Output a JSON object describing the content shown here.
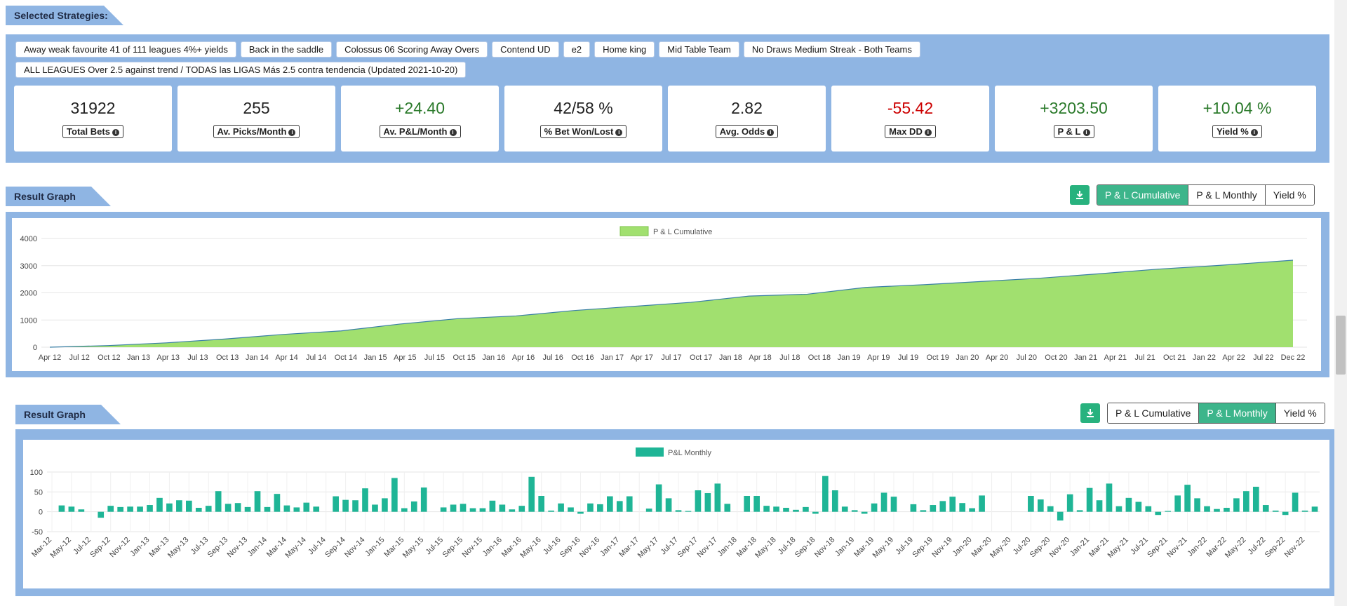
{
  "selected": {
    "title": "Selected Strategies:",
    "chips": [
      "Away weak favourite 41 of 111 leagues 4%+ yields",
      "Back in the saddle",
      "Colossus 06 Scoring Away Overs",
      "Contend UD",
      "e2",
      "Home king",
      "Mid Table Team",
      "No Draws Medium Streak - Both Teams",
      "ALL LEAGUES Over 2.5 against trend / TODAS las LIGAS Más 2.5 contra tendencia (Updated 2021-10-20)"
    ]
  },
  "stats": [
    {
      "value": "31922",
      "label": "Total Bets",
      "tone": "dark"
    },
    {
      "value": "255",
      "label": "Av. Picks/Month",
      "tone": "dark"
    },
    {
      "value": "+24.40",
      "label": "Av. P&L/Month",
      "tone": "green"
    },
    {
      "value": "42/58 %",
      "label": "% Bet Won/Lost",
      "tone": "dark"
    },
    {
      "value": "2.82",
      "label": "Avg. Odds",
      "tone": "dark"
    },
    {
      "value": "-55.42",
      "label": "Max DD",
      "tone": "red"
    },
    {
      "value": "+3203.50",
      "label": "P & L",
      "tone": "green"
    },
    {
      "value": "+10.04 %",
      "label": "Yield %",
      "tone": "green"
    }
  ],
  "graph1": {
    "title": "Result Graph",
    "buttons": [
      "P & L Cumulative",
      "P & L Monthly",
      "Yield %"
    ],
    "active": 0
  },
  "graph2": {
    "title": "Result Graph",
    "buttons": [
      "P & L Cumulative",
      "P & L Monthly",
      "Yield %"
    ],
    "active": 1
  },
  "colors": {
    "panel": "#8fb5e3",
    "accent": "#3db58b",
    "area": "#a1e06f",
    "areaLine": "#3a7fa6",
    "bar": "#1fb596"
  },
  "chart_data": [
    {
      "type": "area",
      "legend": "P & L Cumulative",
      "ylim": [
        0,
        4000
      ],
      "yticks": [
        0,
        1000,
        2000,
        3000,
        4000
      ],
      "x_ticks": [
        "Apr 12",
        "Jul 12",
        "Oct 12",
        "Jan 13",
        "Apr 13",
        "Jul 13",
        "Oct 13",
        "Jan 14",
        "Apr 14",
        "Jul 14",
        "Oct 14",
        "Jan 15",
        "Apr 15",
        "Jul 15",
        "Oct 15",
        "Jan 16",
        "Apr 16",
        "Jul 16",
        "Oct 16",
        "Jan 17",
        "Apr 17",
        "Jul 17",
        "Oct 17",
        "Jan 18",
        "Apr 18",
        "Jul 18",
        "Oct 18",
        "Jan 19",
        "Apr 19",
        "Jul 19",
        "Oct 19",
        "Jan 20",
        "Apr 20",
        "Jul 20",
        "Oct 20",
        "Jan 21",
        "Apr 21",
        "Jul 21",
        "Oct 21",
        "Jan 22",
        "Apr 22",
        "Jul 22",
        "Dec 22"
      ],
      "x": [
        "2012-04",
        "2012-10",
        "2013-04",
        "2013-10",
        "2014-04",
        "2014-10",
        "2015-04",
        "2015-10",
        "2016-04",
        "2016-10",
        "2017-04",
        "2017-10",
        "2018-04",
        "2018-10",
        "2019-04",
        "2019-10",
        "2020-04",
        "2020-10",
        "2021-04",
        "2021-10",
        "2022-04",
        "2022-12"
      ],
      "y": [
        0,
        60,
        160,
        300,
        470,
        600,
        850,
        1050,
        1150,
        1350,
        1500,
        1650,
        1880,
        1950,
        2200,
        2300,
        2420,
        2540,
        2700,
        2870,
        3000,
        3200
      ]
    },
    {
      "type": "bar",
      "legend": "P&L Monthly",
      "ylim": [
        -50,
        100
      ],
      "yticks": [
        -50,
        0,
        50,
        100
      ],
      "categories": [
        "Mar-12",
        "Apr-12",
        "May-12",
        "Jun-12",
        "Jul-12",
        "Aug-12",
        "Sep-12",
        "Oct-12",
        "Nov-12",
        "Dec-12",
        "Jan-13",
        "Feb-13",
        "Mar-13",
        "Apr-13",
        "May-13",
        "Jun-13",
        "Jul-13",
        "Aug-13",
        "Sep-13",
        "Oct-13",
        "Nov-13",
        "Dec-13",
        "Jan-14",
        "Feb-14",
        "Mar-14",
        "Apr-14",
        "May-14",
        "Jun-14",
        "Jul-14",
        "Aug-14",
        "Sep-14",
        "Oct-14",
        "Nov-14",
        "Dec-14",
        "Jan-15",
        "Feb-15",
        "Mar-15",
        "Apr-15",
        "May-15",
        "Jun-15",
        "Jul-15",
        "Aug-15",
        "Sep-15",
        "Oct-15",
        "Nov-15",
        "Dec-15",
        "Jan-16",
        "Feb-16",
        "Mar-16",
        "Apr-16",
        "May-16",
        "Jun-16",
        "Jul-16",
        "Aug-16",
        "Sep-16",
        "Oct-16",
        "Nov-16",
        "Dec-16",
        "Jan-17",
        "Feb-17",
        "Mar-17",
        "Apr-17",
        "May-17",
        "Jun-17",
        "Jul-17",
        "Aug-17",
        "Sep-17",
        "Oct-17",
        "Nov-17",
        "Dec-17",
        "Jan-18",
        "Feb-18",
        "Mar-18",
        "Apr-18",
        "May-18",
        "Jun-18",
        "Jul-18",
        "Aug-18",
        "Sep-18",
        "Oct-18",
        "Nov-18",
        "Dec-18",
        "Jan-19",
        "Feb-19",
        "Mar-19",
        "Apr-19",
        "May-19",
        "Jun-19",
        "Jul-19",
        "Aug-19",
        "Sep-19",
        "Oct-19",
        "Nov-19",
        "Dec-19",
        "Jan-20",
        "Feb-20",
        "Mar-20",
        "Apr-20",
        "May-20",
        "Jun-20",
        "Jul-20",
        "Aug-20",
        "Sep-20",
        "Oct-20",
        "Nov-20",
        "Dec-20",
        "Jan-21",
        "Feb-21",
        "Mar-21",
        "Apr-21",
        "May-21",
        "Jun-21",
        "Jul-21",
        "Aug-21",
        "Sep-21",
        "Oct-21",
        "Nov-21",
        "Dec-21",
        "Jan-22",
        "Feb-22",
        "Mar-22",
        "Apr-22",
        "May-22",
        "Jun-22",
        "Jul-22",
        "Aug-22",
        "Sep-22",
        "Oct-22",
        "Nov-22",
        "Dec-22"
      ],
      "values": [
        0,
        16,
        13,
        6,
        0,
        -15,
        15,
        12,
        13,
        13,
        17,
        35,
        21,
        29,
        28,
        10,
        15,
        52,
        20,
        22,
        12,
        52,
        12,
        45,
        16,
        11,
        23,
        13,
        0,
        39,
        30,
        29,
        59,
        18,
        34,
        85,
        9,
        26,
        61,
        0,
        11,
        18,
        20,
        9,
        9,
        28,
        18,
        6,
        15,
        88,
        40,
        3,
        21,
        11,
        -5,
        21,
        19,
        39,
        27,
        39,
        0,
        8,
        69,
        34,
        4,
        2,
        54,
        47,
        71,
        20,
        0,
        40,
        40,
        15,
        13,
        10,
        5,
        12,
        -5,
        90,
        54,
        13,
        4,
        -5,
        21,
        48,
        38,
        0,
        19,
        4,
        17,
        27,
        38,
        22,
        9,
        41,
        0,
        0,
        0,
        0,
        40,
        31,
        14,
        -22,
        44,
        4,
        60,
        29,
        71,
        14,
        35,
        25,
        14,
        -8,
        2,
        41,
        68,
        34,
        14,
        7,
        10,
        34,
        52,
        63,
        17,
        3,
        -8,
        48,
        3,
        13
      ]
    }
  ]
}
